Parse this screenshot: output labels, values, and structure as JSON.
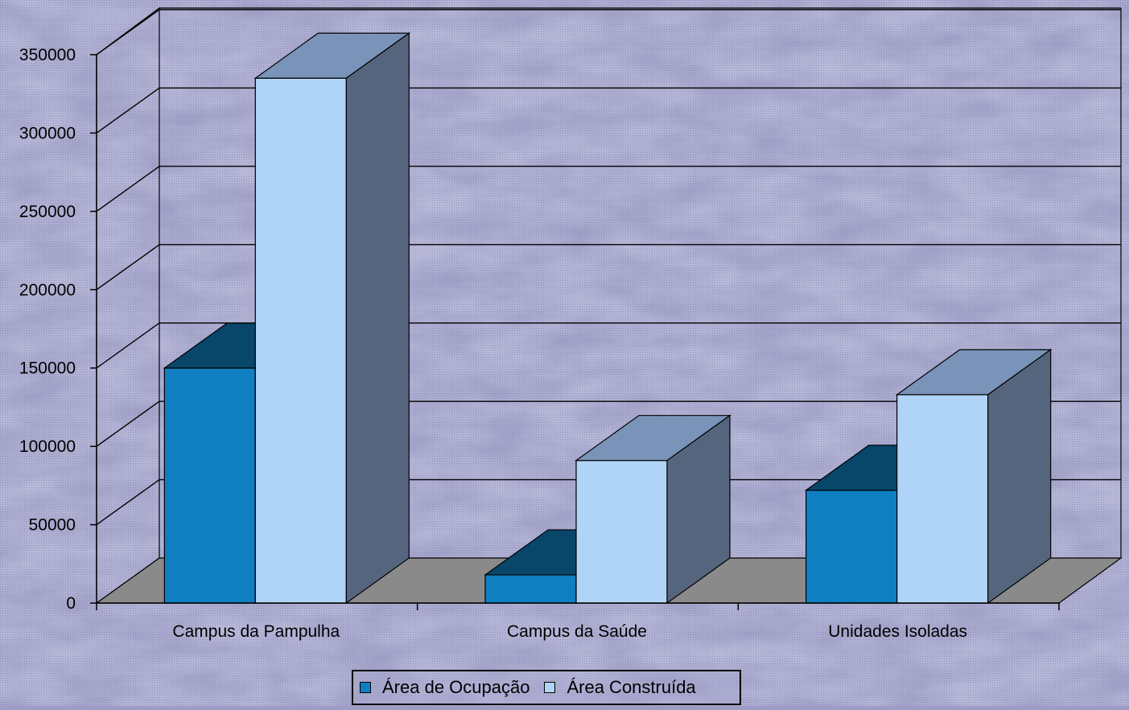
{
  "chart_data": {
    "type": "bar",
    "style": "3d-clustered-column",
    "categories": [
      "Campus da Pampulha",
      "Campus da Saúde",
      "Unidades Isoladas"
    ],
    "series": [
      {
        "name": "Área de Ocupação",
        "values": [
          150000,
          18000,
          72000
        ],
        "color": "#0f7fc1"
      },
      {
        "name": "Área Construída",
        "values": [
          335000,
          91000,
          133000
        ],
        "color": "#b0d4f8"
      }
    ],
    "yticks": [
      0,
      50000,
      100000,
      150000,
      200000,
      250000,
      300000,
      350000
    ],
    "ylim": [
      0,
      350000
    ],
    "grid": true,
    "legend_position": "bottom",
    "colors": {
      "background": "#9c9cc4",
      "floor": "#8a8a8a",
      "gridline": "#000000"
    }
  }
}
